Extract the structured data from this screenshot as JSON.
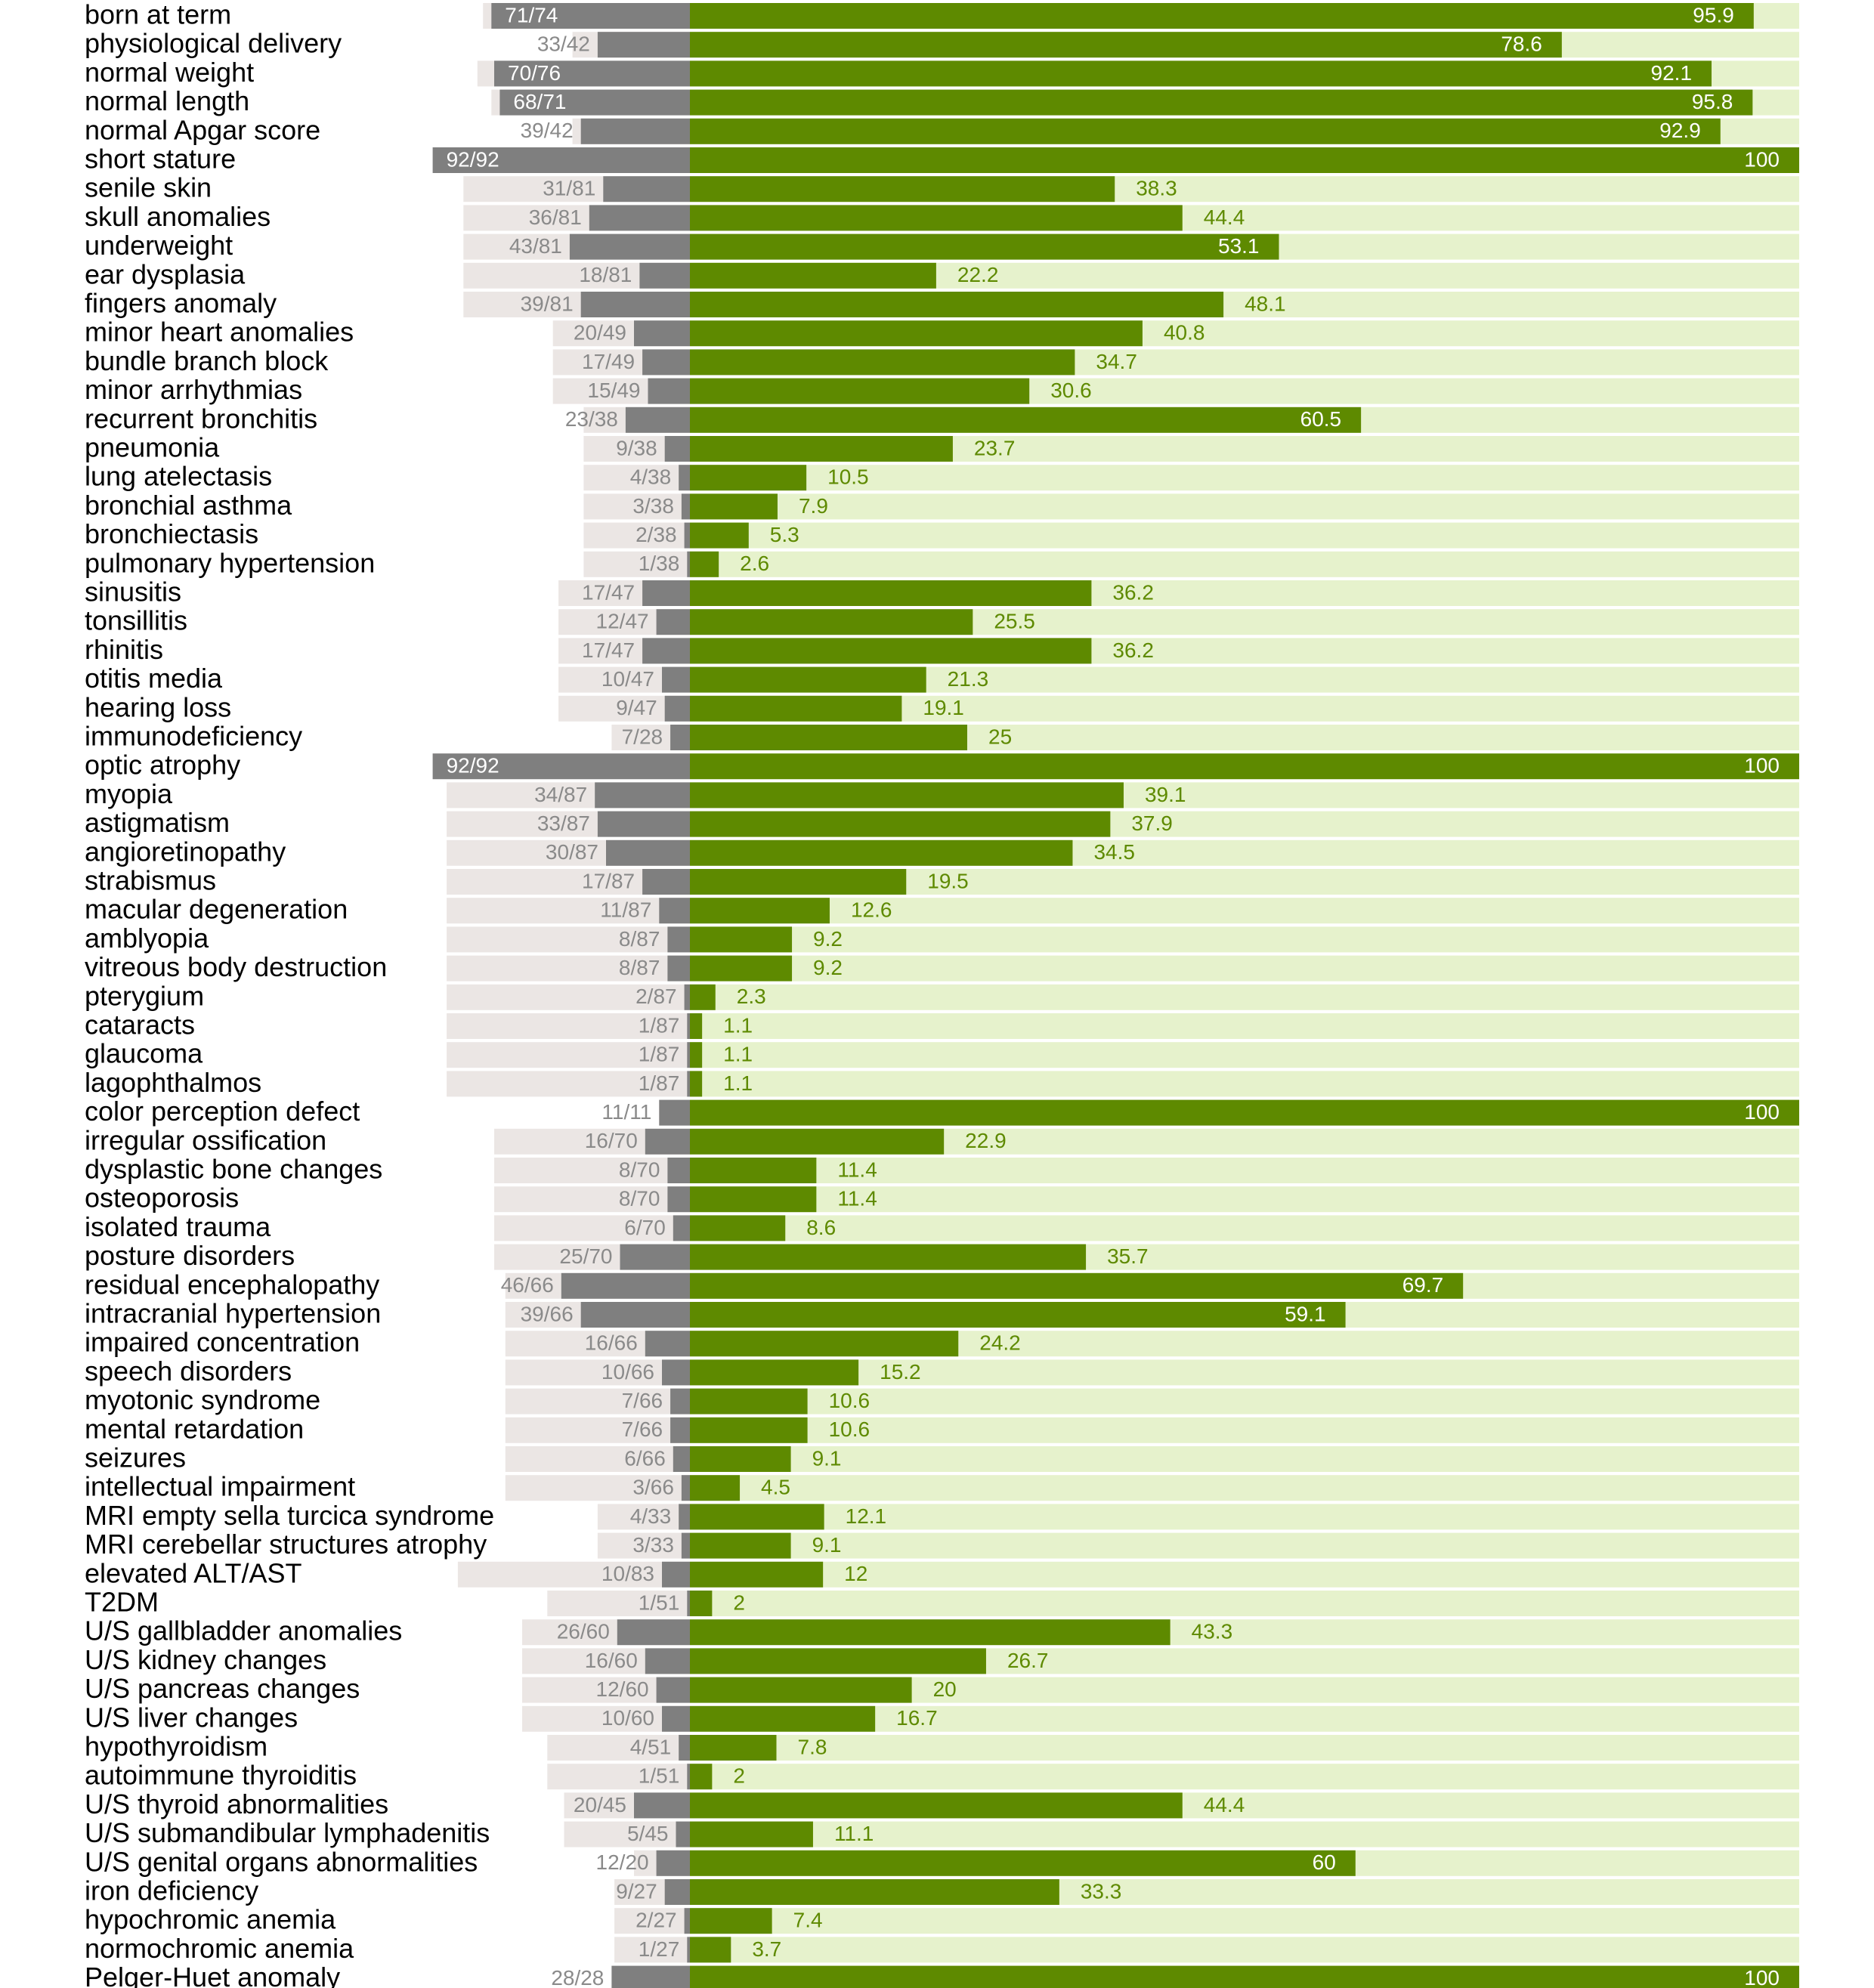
{
  "chart_data": {
    "type": "bar",
    "colors": {
      "percent_bar": "#5e8a00",
      "percent_track": "#e6f2cc",
      "count_bar": "#7f7f7f",
      "count_track": "#ebe6e4",
      "row_label": "#000000",
      "count_text_inside": "#ffffff",
      "count_text_outside": "#8a8a8a",
      "pct_text_inside": "#ffffff",
      "pct_text_outside": "#5e8a00"
    },
    "rows": [
      {
        "label": "born at term",
        "count": "71/74",
        "n": 71,
        "total": 74,
        "pct": 95.9,
        "pct_label": "95.9"
      },
      {
        "label": "physiological delivery",
        "count": "33/42",
        "n": 33,
        "total": 42,
        "pct": 78.6,
        "pct_label": "78.6"
      },
      {
        "label": "normal weight",
        "count": "70/76",
        "n": 70,
        "total": 76,
        "pct": 92.1,
        "pct_label": "92.1"
      },
      {
        "label": "normal length",
        "count": "68/71",
        "n": 68,
        "total": 71,
        "pct": 95.8,
        "pct_label": "95.8"
      },
      {
        "label": "normal Apgar score",
        "count": "39/42",
        "n": 39,
        "total": 42,
        "pct": 92.9,
        "pct_label": "92.9"
      },
      {
        "label": "short stature",
        "count": "92/92",
        "n": 92,
        "total": 92,
        "pct": 100,
        "pct_label": "100"
      },
      {
        "label": "senile skin",
        "count": "31/81",
        "n": 31,
        "total": 81,
        "pct": 38.3,
        "pct_label": "38.3"
      },
      {
        "label": "skull anomalies",
        "count": "36/81",
        "n": 36,
        "total": 81,
        "pct": 44.4,
        "pct_label": "44.4"
      },
      {
        "label": "underweight",
        "count": "43/81",
        "n": 43,
        "total": 81,
        "pct": 53.1,
        "pct_label": "53.1"
      },
      {
        "label": "ear dysplasia",
        "count": "18/81",
        "n": 18,
        "total": 81,
        "pct": 22.2,
        "pct_label": "22.2"
      },
      {
        "label": "fingers anomaly",
        "count": "39/81",
        "n": 39,
        "total": 81,
        "pct": 48.1,
        "pct_label": "48.1"
      },
      {
        "label": "minor heart anomalies",
        "count": "20/49",
        "n": 20,
        "total": 49,
        "pct": 40.8,
        "pct_label": "40.8"
      },
      {
        "label": "bundle branch block",
        "count": "17/49",
        "n": 17,
        "total": 49,
        "pct": 34.7,
        "pct_label": "34.7"
      },
      {
        "label": "minor arrhythmias",
        "count": "15/49",
        "n": 15,
        "total": 49,
        "pct": 30.6,
        "pct_label": "30.6"
      },
      {
        "label": "recurrent bronchitis",
        "count": "23/38",
        "n": 23,
        "total": 38,
        "pct": 60.5,
        "pct_label": "60.5"
      },
      {
        "label": "pneumonia",
        "count": "9/38",
        "n": 9,
        "total": 38,
        "pct": 23.7,
        "pct_label": "23.7"
      },
      {
        "label": "lung atelectasis",
        "count": "4/38",
        "n": 4,
        "total": 38,
        "pct": 10.5,
        "pct_label": "10.5"
      },
      {
        "label": "bronchial asthma",
        "count": "3/38",
        "n": 3,
        "total": 38,
        "pct": 7.9,
        "pct_label": "7.9"
      },
      {
        "label": "bronchiectasis",
        "count": "2/38",
        "n": 2,
        "total": 38,
        "pct": 5.3,
        "pct_label": "5.3"
      },
      {
        "label": "pulmonary hypertension",
        "count": "1/38",
        "n": 1,
        "total": 38,
        "pct": 2.6,
        "pct_label": "2.6"
      },
      {
        "label": "sinusitis",
        "count": "17/47",
        "n": 17,
        "total": 47,
        "pct": 36.2,
        "pct_label": "36.2"
      },
      {
        "label": "tonsillitis",
        "count": "12/47",
        "n": 12,
        "total": 47,
        "pct": 25.5,
        "pct_label": "25.5"
      },
      {
        "label": "rhinitis",
        "count": "17/47",
        "n": 17,
        "total": 47,
        "pct": 36.2,
        "pct_label": "36.2"
      },
      {
        "label": "otitis media",
        "count": "10/47",
        "n": 10,
        "total": 47,
        "pct": 21.3,
        "pct_label": "21.3"
      },
      {
        "label": "hearing loss",
        "count": "9/47",
        "n": 9,
        "total": 47,
        "pct": 19.1,
        "pct_label": "19.1"
      },
      {
        "label": "immunodeficiency",
        "count": "7/28",
        "n": 7,
        "total": 28,
        "pct": 25,
        "pct_label": "25"
      },
      {
        "label": "optic atrophy",
        "count": "92/92",
        "n": 92,
        "total": 92,
        "pct": 100,
        "pct_label": "100"
      },
      {
        "label": "myopia",
        "count": "34/87",
        "n": 34,
        "total": 87,
        "pct": 39.1,
        "pct_label": "39.1"
      },
      {
        "label": "astigmatism",
        "count": "33/87",
        "n": 33,
        "total": 87,
        "pct": 37.9,
        "pct_label": "37.9"
      },
      {
        "label": "angioretinopathy",
        "count": "30/87",
        "n": 30,
        "total": 87,
        "pct": 34.5,
        "pct_label": "34.5"
      },
      {
        "label": "strabismus",
        "count": "17/87",
        "n": 17,
        "total": 87,
        "pct": 19.5,
        "pct_label": "19.5"
      },
      {
        "label": "macular degeneration",
        "count": "11/87",
        "n": 11,
        "total": 87,
        "pct": 12.6,
        "pct_label": "12.6"
      },
      {
        "label": "amblyopia",
        "count": "8/87",
        "n": 8,
        "total": 87,
        "pct": 9.2,
        "pct_label": "9.2"
      },
      {
        "label": "vitreous body destruction",
        "count": "8/87",
        "n": 8,
        "total": 87,
        "pct": 9.2,
        "pct_label": "9.2"
      },
      {
        "label": "pterygium",
        "count": "2/87",
        "n": 2,
        "total": 87,
        "pct": 2.3,
        "pct_label": "2.3"
      },
      {
        "label": "cataracts",
        "count": "1/87",
        "n": 1,
        "total": 87,
        "pct": 1.1,
        "pct_label": "1.1"
      },
      {
        "label": "glaucoma",
        "count": "1/87",
        "n": 1,
        "total": 87,
        "pct": 1.1,
        "pct_label": "1.1"
      },
      {
        "label": "lagophthalmos",
        "count": "1/87",
        "n": 1,
        "total": 87,
        "pct": 1.1,
        "pct_label": "1.1"
      },
      {
        "label": "color perception defect",
        "count": "11/11",
        "n": 11,
        "total": 11,
        "pct": 100,
        "pct_label": "100"
      },
      {
        "label": "irregular ossification",
        "count": "16/70",
        "n": 16,
        "total": 70,
        "pct": 22.9,
        "pct_label": "22.9"
      },
      {
        "label": "dysplastic bone changes",
        "count": "8/70",
        "n": 8,
        "total": 70,
        "pct": 11.4,
        "pct_label": "11.4"
      },
      {
        "label": "osteoporosis",
        "count": "8/70",
        "n": 8,
        "total": 70,
        "pct": 11.4,
        "pct_label": "11.4"
      },
      {
        "label": "isolated trauma",
        "count": "6/70",
        "n": 6,
        "total": 70,
        "pct": 8.6,
        "pct_label": "8.6"
      },
      {
        "label": "posture disorders",
        "count": "25/70",
        "n": 25,
        "total": 70,
        "pct": 35.7,
        "pct_label": "35.7"
      },
      {
        "label": "residual encephalopathy",
        "count": "46/66",
        "n": 46,
        "total": 66,
        "pct": 69.7,
        "pct_label": "69.7"
      },
      {
        "label": "intracranial hypertension",
        "count": "39/66",
        "n": 39,
        "total": 66,
        "pct": 59.1,
        "pct_label": "59.1"
      },
      {
        "label": "impaired concentration",
        "count": "16/66",
        "n": 16,
        "total": 66,
        "pct": 24.2,
        "pct_label": "24.2"
      },
      {
        "label": "speech disorders",
        "count": "10/66",
        "n": 10,
        "total": 66,
        "pct": 15.2,
        "pct_label": "15.2"
      },
      {
        "label": "myotonic syndrome",
        "count": "7/66",
        "n": 7,
        "total": 66,
        "pct": 10.6,
        "pct_label": "10.6"
      },
      {
        "label": "mental retardation",
        "count": "7/66",
        "n": 7,
        "total": 66,
        "pct": 10.6,
        "pct_label": "10.6"
      },
      {
        "label": "seizures",
        "count": "6/66",
        "n": 6,
        "total": 66,
        "pct": 9.1,
        "pct_label": "9.1"
      },
      {
        "label": "intellectual impairment",
        "count": "3/66",
        "n": 3,
        "total": 66,
        "pct": 4.5,
        "pct_label": "4.5"
      },
      {
        "label": "MRI empty sella turcica syndrome",
        "count": "4/33",
        "n": 4,
        "total": 33,
        "pct": 12.1,
        "pct_label": "12.1"
      },
      {
        "label": "MRI cerebellar structures atrophy",
        "count": "3/33",
        "n": 3,
        "total": 33,
        "pct": 9.1,
        "pct_label": "9.1"
      },
      {
        "label": "elevated ALT/AST",
        "count": "10/83",
        "n": 10,
        "total": 83,
        "pct": 12,
        "pct_label": "12"
      },
      {
        "label": "T2DM",
        "count": "1/51",
        "n": 1,
        "total": 51,
        "pct": 2,
        "pct_label": "2"
      },
      {
        "label": "U/S gallbladder anomalies",
        "count": "26/60",
        "n": 26,
        "total": 60,
        "pct": 43.3,
        "pct_label": "43.3"
      },
      {
        "label": "U/S kidney changes",
        "count": "16/60",
        "n": 16,
        "total": 60,
        "pct": 26.7,
        "pct_label": "26.7"
      },
      {
        "label": "U/S pancreas changes",
        "count": "12/60",
        "n": 12,
        "total": 60,
        "pct": 20,
        "pct_label": "20"
      },
      {
        "label": "U/S liver changes",
        "count": "10/60",
        "n": 10,
        "total": 60,
        "pct": 16.7,
        "pct_label": "16.7"
      },
      {
        "label": "hypothyroidism",
        "count": "4/51",
        "n": 4,
        "total": 51,
        "pct": 7.8,
        "pct_label": "7.8"
      },
      {
        "label": "autoimmune thyroiditis",
        "count": "1/51",
        "n": 1,
        "total": 51,
        "pct": 2,
        "pct_label": "2"
      },
      {
        "label": "U/S thyroid abnormalities",
        "count": "20/45",
        "n": 20,
        "total": 45,
        "pct": 44.4,
        "pct_label": "44.4"
      },
      {
        "label": "U/S submandibular lymphadenitis",
        "count": "5/45",
        "n": 5,
        "total": 45,
        "pct": 11.1,
        "pct_label": "11.1"
      },
      {
        "label": "U/S genital organs abnormalities",
        "count": "12/20",
        "n": 12,
        "total": 20,
        "pct": 60,
        "pct_label": "60"
      },
      {
        "label": "iron deficiency",
        "count": "9/27",
        "n": 9,
        "total": 27,
        "pct": 33.3,
        "pct_label": "33.3"
      },
      {
        "label": "hypochromic anemia",
        "count": "2/27",
        "n": 2,
        "total": 27,
        "pct": 7.4,
        "pct_label": "7.4"
      },
      {
        "label": "normochromic anemia",
        "count": "1/27",
        "n": 1,
        "total": 27,
        "pct": 3.7,
        "pct_label": "3.7"
      },
      {
        "label": "Pelger-Huet anomaly",
        "count": "28/28",
        "n": 28,
        "total": 28,
        "pct": 100,
        "pct_label": "100"
      }
    ]
  }
}
